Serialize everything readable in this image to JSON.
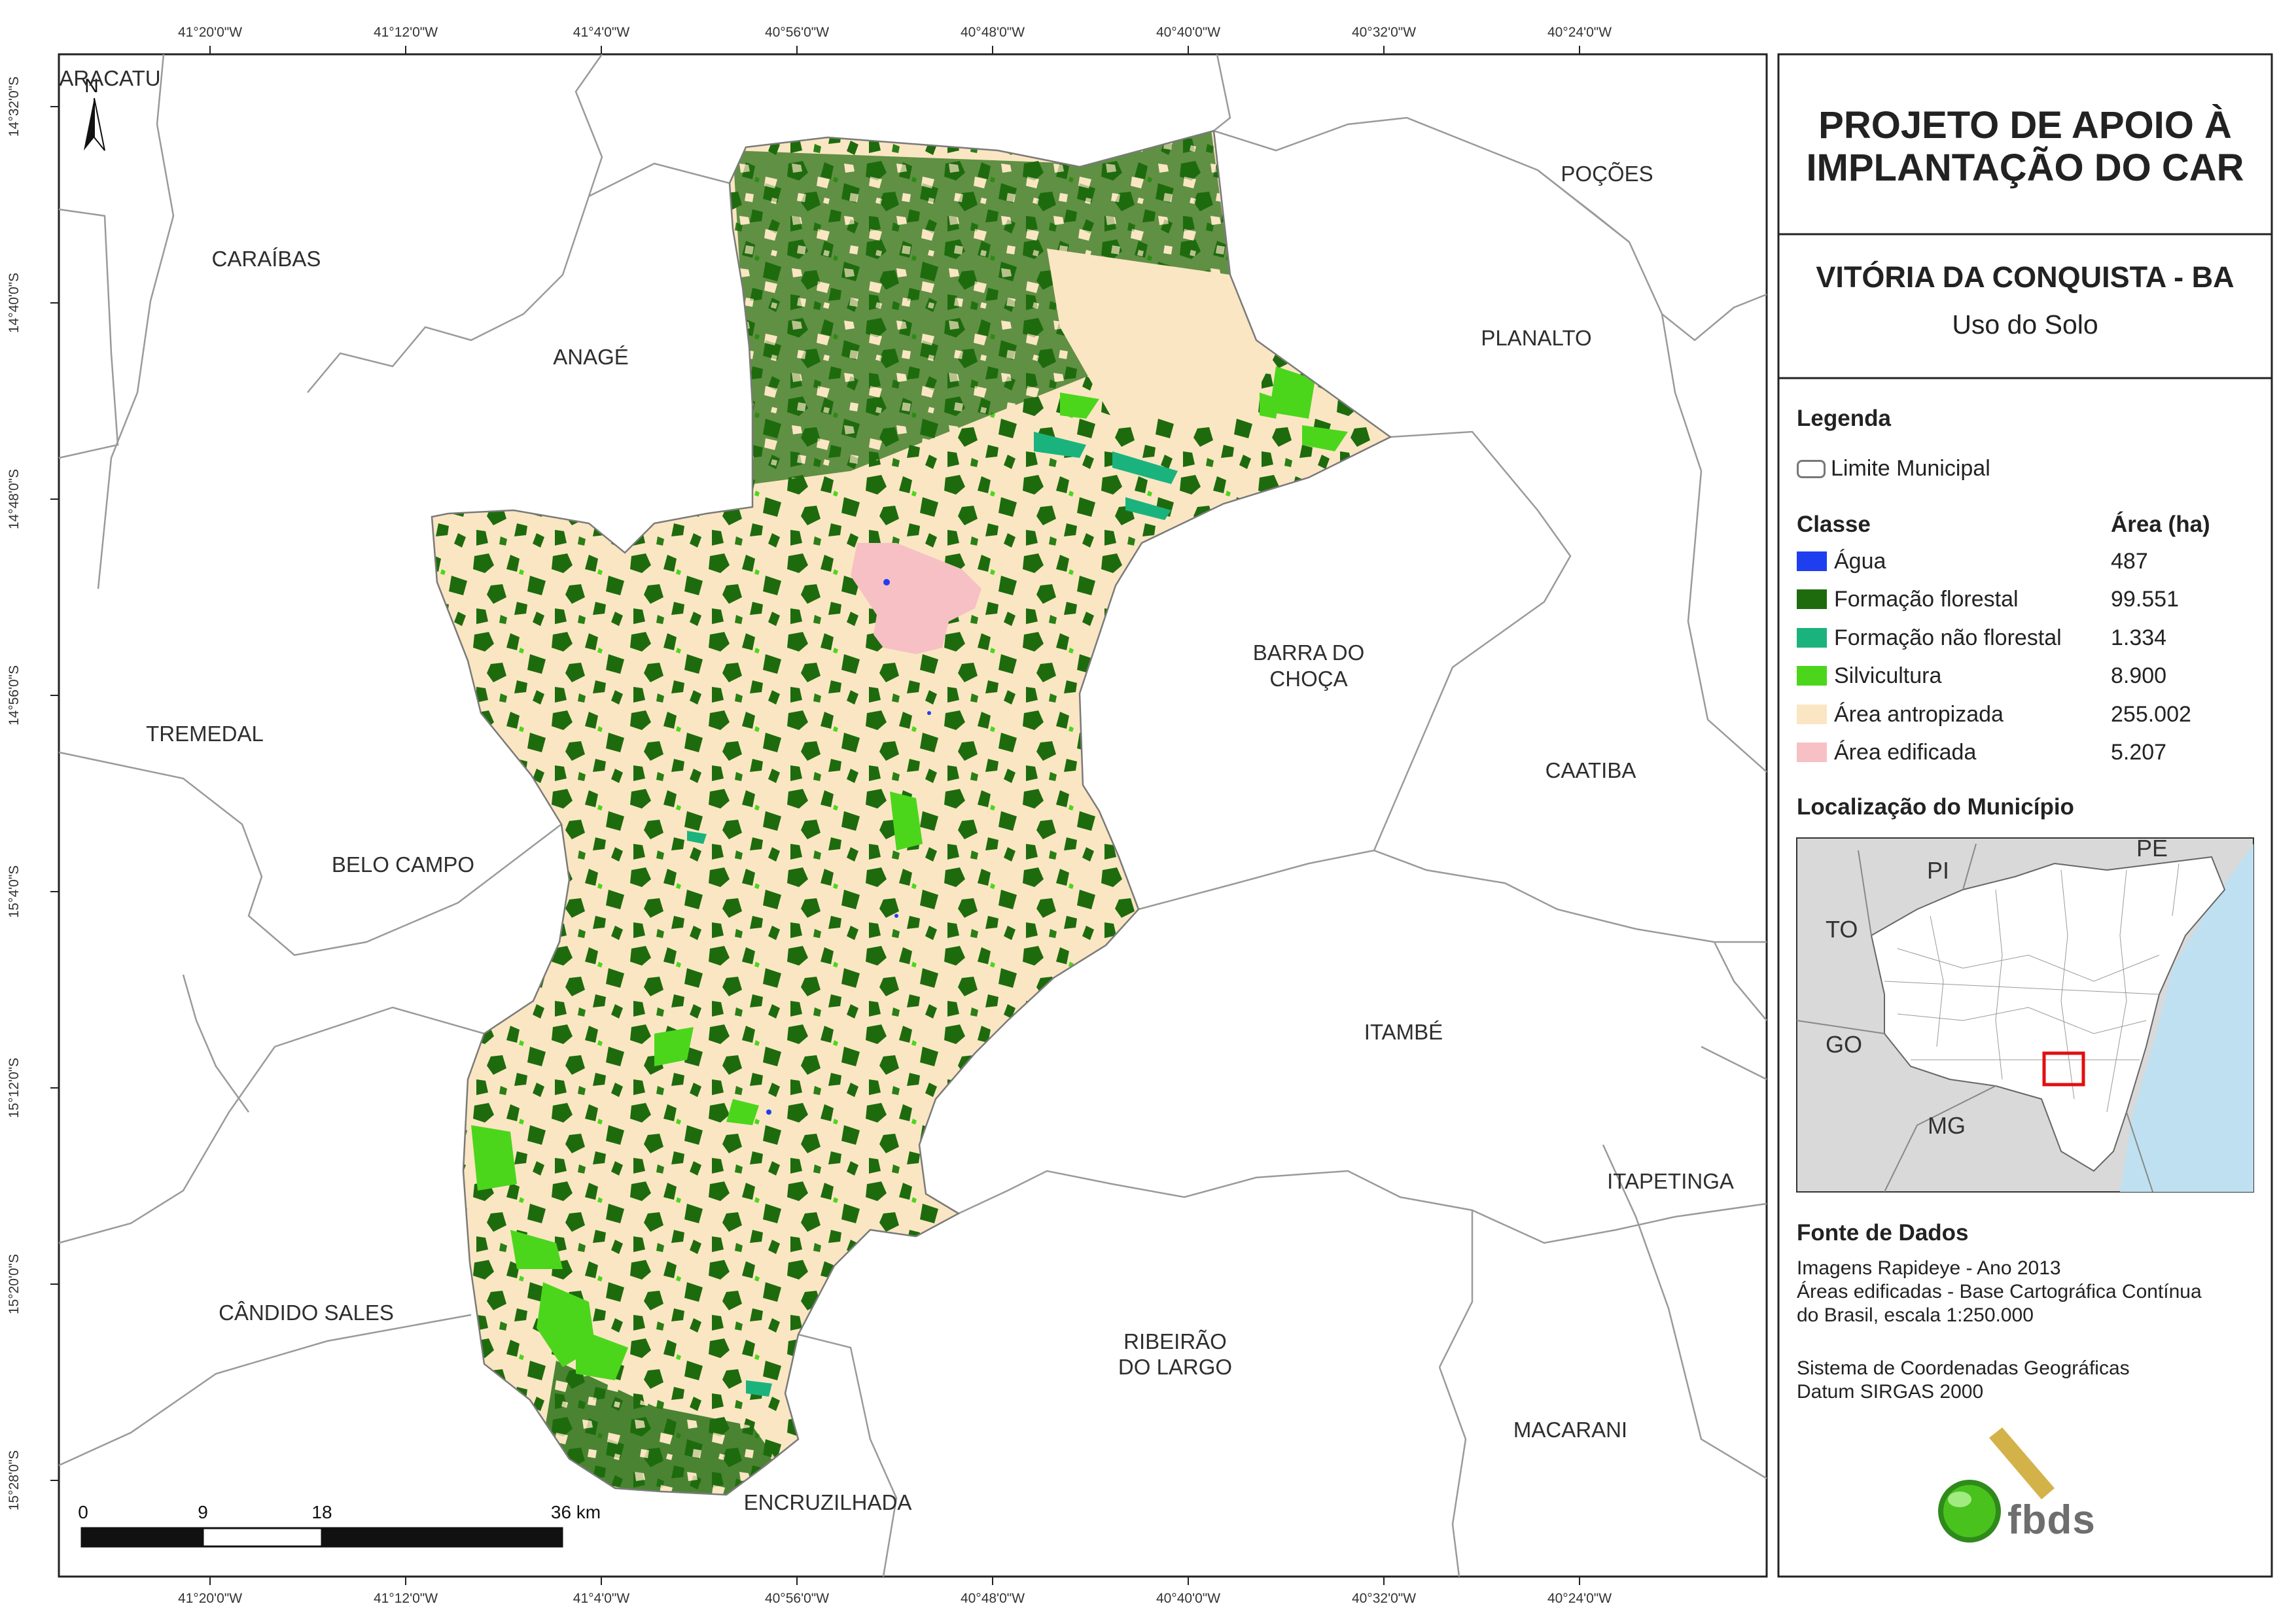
{
  "panel": {
    "title_line1": "PROJETO DE APOIO À",
    "title_line2": "IMPLANTAÇÃO DO CAR",
    "municipality": "VITÓRIA DA CONQUISTA - BA",
    "subtitle": "Uso do Solo",
    "legend_heading": "Legenda",
    "limit_label": "Limite Municipal",
    "class_heading": "Classe",
    "area_heading": "Área (ha)",
    "classes": [
      {
        "name": "Água",
        "area": "487",
        "color": "#1f3ef0"
      },
      {
        "name": "Formação florestal",
        "area": "99.551",
        "color": "#1e6b0e"
      },
      {
        "name": "Formação não florestal",
        "area": "1.334",
        "color": "#1bb37d"
      },
      {
        "name": "Silvicultura",
        "area": "8.900",
        "color": "#4bd61c"
      },
      {
        "name": "Área antropizada",
        "area": "255.002",
        "color": "#fae6c3"
      },
      {
        "name": "Área edificada",
        "area": "5.207",
        "color": "#f7c0c4"
      }
    ],
    "location_heading": "Localização do Município",
    "inset_labels": [
      "PI",
      "PE",
      "TO",
      "GO",
      "MG"
    ],
    "source_heading": "Fonte de Dados",
    "source_lines": [
      "Imagens Rapideye - Ano 2013",
      "Áreas edificadas - Base Cartográfica Contínua",
      "do Brasil, escala 1:250.000"
    ],
    "crs_lines": [
      "Sistema de Coordenadas Geográficas",
      "Datum SIRGAS 2000"
    ],
    "logo_text": "fbds"
  },
  "map": {
    "north_label": "N",
    "neighbors": [
      "ARACATU",
      "CARAÍBAS",
      "ANAGÉ",
      "POÇÕES",
      "PLANALTO",
      "BARRA DO",
      "CHOÇA",
      "TREMEDAL",
      "CAATIBA",
      "BELO CAMPO",
      "ITAMBÉ",
      "ITAPETINGA",
      "CÂNDIDO SALES",
      "RIBEIRÃO",
      "DO LARGO",
      "MACARANI",
      "ENCRUZILHADA"
    ],
    "lon_ticks": [
      "41°20'0\"W",
      "41°12'0\"W",
      "41°4'0\"W",
      "40°56'0\"W",
      "40°48'0\"W",
      "40°40'0\"W",
      "40°32'0\"W",
      "40°24'0\"W"
    ],
    "lat_ticks": [
      "14°32'0\"S",
      "14°40'0\"S",
      "14°48'0\"S",
      "14°56'0\"S",
      "15°4'0\"S",
      "15°12'0\"S",
      "15°20'0\"S",
      "15°28'0\"S"
    ],
    "scale": {
      "labels": [
        "0",
        "9",
        "18",
        "36 km"
      ]
    }
  }
}
